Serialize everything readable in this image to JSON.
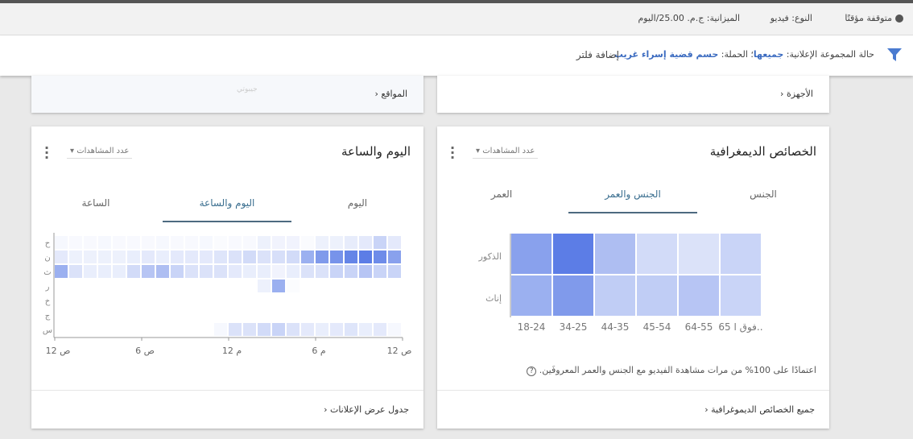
{
  "header": {
    "status": "متوقفة مؤقتًا",
    "type": "النوع: فيديو",
    "budget": "الميزانية: ج.م. 25.00/اليوم"
  },
  "filter": {
    "prefix": "حالة المجموعة الإعلانية:",
    "ad_group_value": "جميعها",
    "campaign_prefix": "؛ الحملة:",
    "campaign_value": "حسم قضية إسراء غريب",
    "add_filter": "إضافة فلتر"
  },
  "top_cards": {
    "locations_link": "المواقع",
    "map_label": "جيبوتي",
    "devices_link": "الأجهزة"
  },
  "day_hour": {
    "title": "اليوم والساعة",
    "metric": "عدد المشاهدات",
    "tabs": [
      "اليوم",
      "اليوم والساعة",
      "الساعة"
    ],
    "active_tab": 1,
    "footer_link": "جدول عرض الإعلانات",
    "chart_data": {
      "type": "heatmap",
      "rows": [
        "ح",
        "ن",
        "ث",
        "ر",
        "خ",
        "ج",
        "س"
      ],
      "x_ticks": [
        "ص 12",
        "ص 6",
        "م 12",
        "م 6",
        "ص 12"
      ],
      "columns": 24,
      "color": "#4a6fe3",
      "values": [
        [
          0.05,
          0.04,
          0.04,
          0.05,
          0.04,
          0.04,
          0.04,
          0.05,
          0.04,
          0.04,
          0.05,
          0.03,
          0.04,
          0.04,
          0.1,
          0.08,
          0.08,
          0.03,
          0.1,
          0.1,
          0.13,
          0.15,
          0.3,
          0.15
        ],
        [
          0.15,
          0.1,
          0.1,
          0.1,
          0.1,
          0.12,
          0.15,
          0.12,
          0.15,
          0.15,
          0.15,
          0.18,
          0.2,
          0.25,
          0.2,
          0.22,
          0.25,
          0.55,
          0.7,
          0.75,
          0.85,
          0.9,
          0.8,
          0.65
        ],
        [
          0.55,
          0.2,
          0.12,
          0.12,
          0.12,
          0.25,
          0.4,
          0.45,
          0.3,
          0.2,
          0.2,
          0.2,
          0.15,
          0.12,
          0.12,
          0.08,
          0.12,
          0.2,
          0.2,
          0.3,
          0.3,
          0.4,
          0.3,
          0.3
        ],
        [
          0,
          0,
          0,
          0,
          0,
          0,
          0,
          0,
          0,
          0,
          0,
          0,
          0,
          0,
          0.1,
          0.55,
          0.02,
          0,
          0,
          0,
          0,
          0,
          0,
          0
        ],
        [
          0,
          0,
          0,
          0,
          0,
          0,
          0,
          0,
          0,
          0,
          0,
          0,
          0,
          0,
          0,
          0,
          0,
          0,
          0,
          0,
          0,
          0,
          0,
          0
        ],
        [
          0,
          0,
          0,
          0,
          0,
          0,
          0,
          0,
          0,
          0,
          0,
          0,
          0,
          0,
          0,
          0,
          0,
          0,
          0,
          0,
          0,
          0,
          0,
          0
        ],
        [
          0,
          0,
          0,
          0,
          0,
          0,
          0,
          0,
          0,
          0,
          0,
          0.05,
          0.2,
          0.2,
          0.25,
          0.3,
          0.2,
          0.15,
          0.12,
          0.15,
          0.18,
          0.12,
          0.15,
          0.05
        ]
      ]
    }
  },
  "demographics": {
    "title": "الخصائص الديمغرافية",
    "metric": "عدد المشاهدات",
    "tabs": [
      "الجنس",
      "الجنس والعمر",
      "العمر"
    ],
    "active_tab": 1,
    "note": "اعتمادًا على 100% من مرات مشاهدة الفيديو مع الجنس والعمر المعروفَين.",
    "footer_link": "جميع الخصائص الديموغرافية",
    "chart_data": {
      "type": "heatmap",
      "rows": [
        "الذكور",
        "إناث"
      ],
      "categories": [
        "18-24",
        "34-25",
        "44-35",
        "45-54",
        "64-55",
        "65 فوق ا.."
      ],
      "color": "#4a6fe3",
      "values": [
        [
          0.65,
          0.9,
          0.45,
          0.25,
          0.2,
          0.3
        ],
        [
          0.55,
          0.7,
          0.35,
          0.35,
          0.4,
          0.3
        ]
      ]
    }
  }
}
